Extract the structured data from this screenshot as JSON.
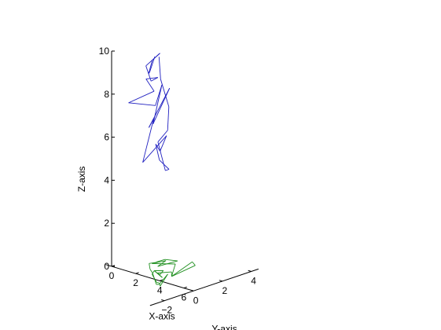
{
  "chart_data": {
    "type": "3d-wireframe",
    "title": "",
    "xlabel": "X-axis",
    "ylabel": "Y-axis",
    "zlabel": "Z-axis",
    "xlim": [
      -0.5,
      6.8
    ],
    "ylim": [
      -3,
      4.5
    ],
    "zlim": [
      0,
      10
    ],
    "xticks": [
      0,
      2,
      4,
      6
    ],
    "yticks": [
      -2,
      0,
      2,
      4
    ],
    "zticks": [
      0,
      2,
      4,
      6,
      8,
      10
    ],
    "grid": false,
    "series": [
      {
        "color": "#2020c0",
        "points": [
          [
            3.28,
            0.24,
            10.24
          ],
          [
            3.32,
            0.22,
            10.24
          ],
          [
            3.44,
            -0.24,
            9.64
          ],
          [
            3.32,
            -0.2,
            9.56
          ],
          [
            3.36,
            0.02,
            10.14
          ],
          [
            3.08,
            0.78,
            10.24
          ],
          [
            3.38,
            -0.44,
            9.98
          ],
          [
            3.52,
            -0.2,
            9.24
          ],
          [
            3.34,
            0.42,
            9.24
          ],
          [
            3.58,
            -0.6,
            9.44
          ],
          [
            3.34,
            0.16,
            8.66
          ],
          [
            4.46,
            -2.54,
            8.92
          ],
          [
            3.64,
            0.0,
            8.08
          ],
          [
            3.58,
            0.5,
            8.92
          ],
          [
            4.26,
            -0.68,
            7.48
          ],
          [
            3.28,
            1.28,
            8.54
          ],
          [
            4.54,
            -1.2,
            7.48
          ],
          [
            3.82,
            -0.26,
            7.58
          ],
          [
            4.32,
            -1.44,
            5.88
          ],
          [
            3.34,
            1.02,
            6.4
          ],
          [
            3.62,
            0.34,
            5.88
          ],
          [
            4.58,
            -0.76,
            6.62
          ],
          [
            4.74,
            -0.64,
            5.88
          ],
          [
            4.58,
            0.16,
            5.24
          ],
          [
            5.14,
            -0.56,
            5.44
          ],
          [
            4.74,
            -0.74,
            6.74
          ],
          [
            4.32,
            0.28,
            6.98
          ],
          [
            3.82,
            0.78,
            7.88
          ],
          [
            3.52,
            0.46,
            9.18
          ],
          [
            3.34,
            0.5,
            10.18
          ]
        ]
      },
      {
        "color": "#1f8f1f",
        "points": [
          [
            2.54,
            0.92,
            0.4
          ],
          [
            2.9,
            0.18,
            0.58
          ],
          [
            3.46,
            -0.22,
            0.5
          ],
          [
            3.88,
            -0.4,
            0.44
          ],
          [
            4.7,
            -0.82,
            0.14
          ],
          [
            4.84,
            -0.74,
            0.14
          ],
          [
            4.38,
            0.24,
            0.32
          ],
          [
            4.88,
            -0.7,
            0.06
          ],
          [
            4.7,
            -0.62,
            0.16
          ],
          [
            5.1,
            -1.12,
            0.36
          ],
          [
            4.66,
            -1.08,
            0.66
          ],
          [
            4.46,
            -0.76,
            0.72
          ],
          [
            4.36,
            -0.12,
            0.24
          ],
          [
            4.46,
            -0.76,
            0.72
          ],
          [
            4.06,
            0.2,
            0.44
          ],
          [
            3.76,
            0.22,
            0.2
          ],
          [
            4.66,
            -0.74,
            0.64
          ],
          [
            4.14,
            0.7,
            0.28
          ],
          [
            4.34,
            0.54,
            0.14
          ],
          [
            4.62,
            1.94,
            0.38
          ],
          [
            4.3,
            2.0,
            0.48
          ],
          [
            4.34,
            0.54,
            0.14
          ],
          [
            3.28,
            1.68,
            0.28
          ],
          [
            3.26,
            0.08,
            0.66
          ],
          [
            3.6,
            0.76,
            0.7
          ],
          [
            3.16,
            0.56,
            0.4
          ],
          [
            3.2,
            1.9,
            0.36
          ],
          [
            2.68,
            1.46,
            0.44
          ],
          [
            2.58,
            1.08,
            0.42
          ],
          [
            2.54,
            0.92,
            0.4
          ]
        ]
      }
    ]
  }
}
